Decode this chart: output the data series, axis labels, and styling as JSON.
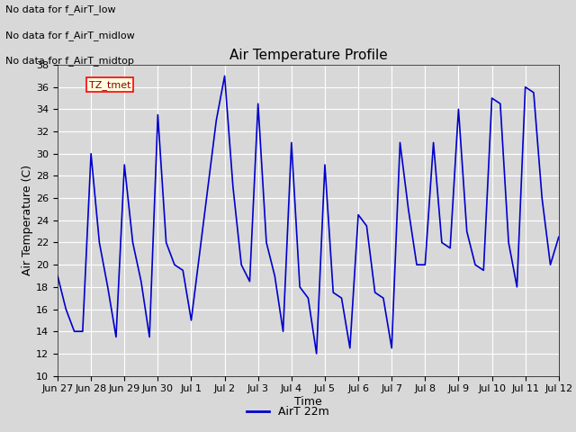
{
  "title": "Air Temperature Profile",
  "xlabel": "Time",
  "ylabel": "Air Temperature (C)",
  "ylim": [
    10,
    38
  ],
  "yticks": [
    10,
    12,
    14,
    16,
    18,
    20,
    22,
    24,
    26,
    28,
    30,
    32,
    34,
    36,
    38
  ],
  "line_color": "#0000cc",
  "line_width": 1.2,
  "background_color": "#d8d8d8",
  "plot_bg_color": "#d8d8d8",
  "grid_color": "#ffffff",
  "legend_label": "AirT 22m",
  "annotations": [
    "No data for f_AirT_low",
    "No data for f_AirT_midlow",
    "No data for f_AirT_midtop"
  ],
  "tz_label": "TZ_tmet",
  "x_tick_labels": [
    "Jun 27",
    "Jun 28",
    "Jun 29",
    "Jun 30",
    "Jul 1",
    "Jul 2",
    "Jul 3",
    "Jul 4",
    "Jul 5",
    "Jul 6",
    "Jul 7",
    "Jul 8",
    "Jul 9",
    "Jul 10",
    "Jul 11",
    "Jul 12"
  ],
  "data_x_days": [
    0,
    0.25,
    0.5,
    0.75,
    1.0,
    1.25,
    1.5,
    1.75,
    2.0,
    2.25,
    2.5,
    2.75,
    3.0,
    3.25,
    3.5,
    3.75,
    4.0,
    4.25,
    4.5,
    4.75,
    5.0,
    5.25,
    5.5,
    5.75,
    6.0,
    6.25,
    6.5,
    6.75,
    7.0,
    7.25,
    7.5,
    7.75,
    8.0,
    8.25,
    8.5,
    8.75,
    9.0,
    9.25,
    9.5,
    9.75,
    10.0,
    10.25,
    10.5,
    10.75,
    11.0,
    11.25,
    11.5,
    11.75,
    12.0,
    12.25,
    12.5,
    12.75,
    13.0,
    13.25,
    13.5,
    13.75,
    14.0,
    14.25,
    14.5,
    14.75,
    15.0
  ],
  "data_y": [
    19,
    16,
    14,
    14,
    30,
    22,
    18,
    13.5,
    29,
    22,
    18.5,
    13.5,
    33.5,
    22,
    20,
    19.5,
    15,
    21,
    27,
    33,
    37,
    27,
    20,
    18.5,
    34.5,
    22,
    19,
    14,
    31,
    18,
    17,
    12,
    29,
    17.5,
    17,
    12.5,
    24.5,
    23.5,
    17.5,
    17,
    12.5,
    31,
    25,
    20,
    20,
    31,
    22,
    21.5,
    34,
    23,
    20,
    19.5,
    35,
    34.5,
    22,
    18,
    36,
    35.5,
    26,
    20,
    22.5
  ],
  "figwidth": 6.4,
  "figheight": 4.8,
  "dpi": 100,
  "title_fontsize": 11,
  "tick_fontsize": 8,
  "ylabel_fontsize": 9,
  "xlabel_fontsize": 9,
  "legend_fontsize": 9,
  "annotation_fontsize": 8,
  "tz_fontsize": 8
}
